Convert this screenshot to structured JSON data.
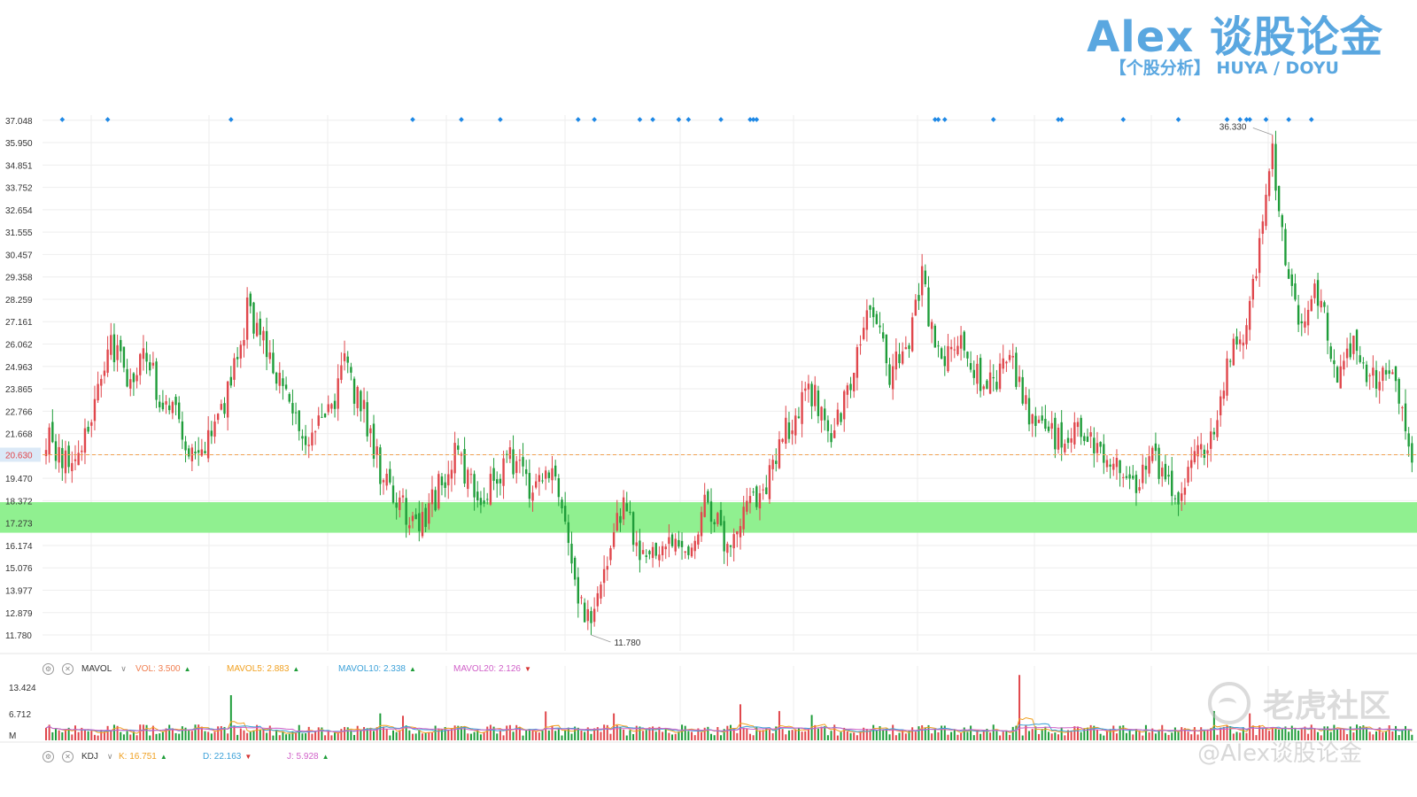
{
  "brand": {
    "title": "Alex 谈股论金",
    "subtitle": "【个股分析】  HUYA / DOYU"
  },
  "colors": {
    "up": "#e0474c",
    "down": "#1f9d3a",
    "last_line": "#f0a050",
    "support_zone": "#90f090",
    "marker": "#1e88e5",
    "grid": "#eeeeee",
    "vol": "#f07e50",
    "mavol5": "#f0a020",
    "mavol10": "#3aa0d8",
    "mavol20": "#d060c8"
  },
  "chart_data": {
    "type": "candlestick",
    "price_axis_ticks": [
      "37.048",
      "35.950",
      "34.851",
      "33.752",
      "32.654",
      "31.555",
      "30.457",
      "29.358",
      "28.259",
      "27.161",
      "26.062",
      "24.963",
      "23.865",
      "22.766",
      "21.668",
      "20.630",
      "19.470",
      "18.372",
      "17.273",
      "16.174",
      "15.076",
      "13.977",
      "12.879",
      "11.780"
    ],
    "ylim": [
      11.0,
      37.3
    ],
    "last_price": "20.630",
    "high_label": "36.330",
    "low_label": "11.780",
    "support_zone": [
      16.8,
      18.3
    ],
    "close_path": [
      [
        0,
        21.5
      ],
      [
        6,
        20.4
      ],
      [
        12,
        21.8
      ],
      [
        20,
        25.8
      ],
      [
        26,
        24.5
      ],
      [
        30,
        25.6
      ],
      [
        36,
        23.2
      ],
      [
        42,
        21.9
      ],
      [
        47,
        20.2
      ],
      [
        54,
        22.4
      ],
      [
        62,
        27.6
      ],
      [
        67,
        26.0
      ],
      [
        72,
        24.0
      ],
      [
        80,
        21.5
      ],
      [
        86,
        22.2
      ],
      [
        92,
        25.0
      ],
      [
        98,
        22.6
      ],
      [
        104,
        19.4
      ],
      [
        110,
        17.9
      ],
      [
        116,
        17.3
      ],
      [
        126,
        20.6
      ],
      [
        134,
        18.0
      ],
      [
        142,
        20.6
      ],
      [
        150,
        18.8
      ],
      [
        154,
        20.3
      ],
      [
        160,
        17.4
      ],
      [
        164,
        14.0
      ],
      [
        168,
        12.3
      ],
      [
        172,
        15.3
      ],
      [
        178,
        18.2
      ],
      [
        183,
        16.0
      ],
      [
        190,
        16.3
      ],
      [
        198,
        15.5
      ],
      [
        204,
        18.4
      ],
      [
        210,
        15.9
      ],
      [
        216,
        17.7
      ],
      [
        222,
        19.2
      ],
      [
        228,
        21.7
      ],
      [
        236,
        23.7
      ],
      [
        242,
        21.6
      ],
      [
        248,
        24.3
      ],
      [
        254,
        28.2
      ],
      [
        260,
        24.6
      ],
      [
        266,
        25.9
      ],
      [
        270,
        29.5
      ],
      [
        274,
        25.4
      ],
      [
        282,
        25.8
      ],
      [
        290,
        24.0
      ],
      [
        298,
        25.0
      ],
      [
        304,
        22.4
      ],
      [
        312,
        21.3
      ],
      [
        318,
        22.4
      ],
      [
        324,
        20.7
      ],
      [
        330,
        19.9
      ],
      [
        336,
        19.3
      ],
      [
        342,
        20.5
      ],
      [
        348,
        18.6
      ],
      [
        354,
        20.2
      ],
      [
        360,
        22.2
      ],
      [
        365,
        25.7
      ],
      [
        370,
        26.4
      ],
      [
        374,
        31.2
      ],
      [
        378,
        35.8
      ],
      [
        382,
        29.5
      ],
      [
        386,
        27.1
      ],
      [
        392,
        28.6
      ],
      [
        398,
        24.8
      ],
      [
        404,
        26.1
      ],
      [
        408,
        24.5
      ],
      [
        414,
        24.8
      ],
      [
        418,
        22.6
      ],
      [
        421,
        20.2
      ]
    ],
    "signal_marker_positions": [
      5,
      19,
      57,
      113,
      128,
      140,
      164,
      169,
      183,
      187,
      195,
      198,
      208,
      217,
      218,
      219,
      274,
      275,
      277,
      292,
      312,
      313,
      332,
      349,
      364,
      368,
      370,
      371,
      376,
      383,
      390
    ],
    "volume": {
      "axis_ticks": [
        "13.424",
        "6.712",
        "M"
      ],
      "spike_positions": [
        57,
        103,
        110,
        154,
        175,
        214,
        226,
        236,
        300,
        360,
        371
      ],
      "spike_heights": [
        11.4,
        6.8,
        6.2,
        7.3,
        6.8,
        9.1,
        7.4,
        6.4,
        16.5,
        7.4,
        6.8
      ]
    }
  },
  "mavol_bar": {
    "name": "MAVOL",
    "vol": "VOL: 3.500",
    "ma5": "MAVOL5: 2.883",
    "ma10": "MAVOL10: 2.338",
    "ma20": "MAVOL20: 2.126"
  },
  "kdj_bar": {
    "name": "KDJ",
    "k": "K: 16.751",
    "d": "D: 22.163",
    "j": "J: 5.928"
  },
  "watermark": {
    "logo": "老虎社区",
    "user": "@Alex谈股论金"
  }
}
